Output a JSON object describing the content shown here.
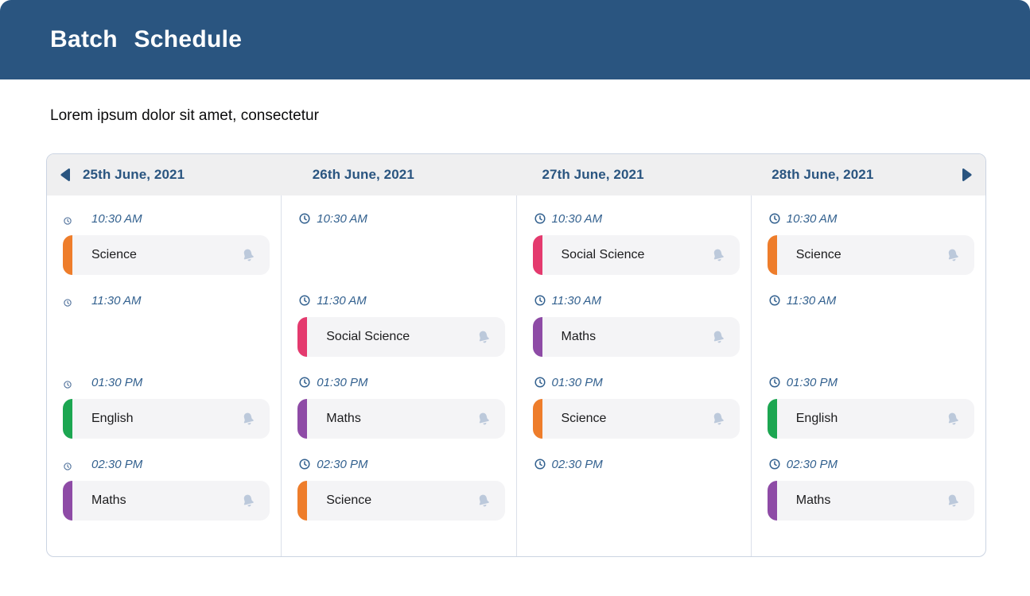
{
  "window": {
    "title": "Batch Schedule",
    "subtitle": "Lorem ipsum dolor sit amet, consectetur"
  },
  "icons": {
    "prev": "caret-left-icon",
    "next": "caret-right-icon",
    "time": "clock-icon",
    "card_action": "bell-icon"
  },
  "colors": {
    "header_bg": "#2A5580",
    "date_text": "#2A5580",
    "time_text": "#33618F",
    "board_header_bg": "#EFEFF0",
    "board_border": "#CBD4E2",
    "card_bg": "#F4F4F6",
    "bell": "#BCC9DB",
    "subject_science": "#EE7D2B",
    "subject_social_science": "#E43A6E",
    "subject_maths": "#8E4BA6",
    "subject_english": "#1CA651"
  },
  "schedule": {
    "columns": [
      {
        "date": "25th June, 2021",
        "slots": [
          {
            "time": "10:30 AM",
            "card": {
              "subject": "Science",
              "accent": "#EE7D2B"
            }
          },
          {
            "time": "11:30 AM",
            "card": null
          },
          {
            "time": "01:30 PM",
            "card": {
              "subject": "English",
              "accent": "#1CA651"
            }
          },
          {
            "time": "02:30 PM",
            "card": {
              "subject": "Maths",
              "accent": "#8E4BA6"
            }
          }
        ]
      },
      {
        "date": "26th June, 2021",
        "slots": [
          {
            "time": "10:30 AM",
            "card": null
          },
          {
            "time": "11:30 AM",
            "card": {
              "subject": "Social Science",
              "accent": "#E43A6E"
            }
          },
          {
            "time": "01:30 PM",
            "card": {
              "subject": "Maths",
              "accent": "#8E4BA6"
            }
          },
          {
            "time": "02:30 PM",
            "card": {
              "subject": "Science",
              "accent": "#EE7D2B"
            }
          }
        ]
      },
      {
        "date": "27th June, 2021",
        "slots": [
          {
            "time": "10:30 AM",
            "card": {
              "subject": "Social Science",
              "accent": "#E43A6E"
            }
          },
          {
            "time": "11:30 AM",
            "card": {
              "subject": "Maths",
              "accent": "#8E4BA6"
            }
          },
          {
            "time": "01:30 PM",
            "card": {
              "subject": "Science",
              "accent": "#EE7D2B"
            }
          },
          {
            "time": "02:30 PM",
            "card": null
          }
        ]
      },
      {
        "date": "28th June, 2021",
        "slots": [
          {
            "time": "10:30 AM",
            "card": {
              "subject": "Science",
              "accent": "#EE7D2B"
            }
          },
          {
            "time": "11:30 AM",
            "card": null
          },
          {
            "time": "01:30 PM",
            "card": {
              "subject": "English",
              "accent": "#1CA651"
            }
          },
          {
            "time": "02:30 PM",
            "card": {
              "subject": "Maths",
              "accent": "#8E4BA6"
            }
          }
        ]
      }
    ]
  }
}
